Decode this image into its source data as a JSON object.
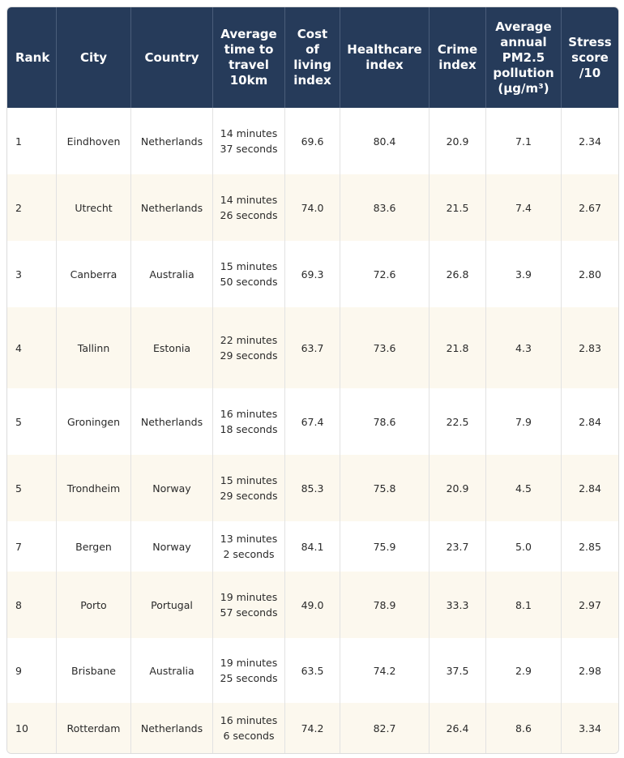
{
  "table": {
    "header": [
      "Rank",
      "City",
      "Country",
      "Average time to travel 10km",
      "Cost of living index",
      "Healthcare index",
      "Crime index",
      "Average annual PM2.5 pollution (µg/m³)",
      "Stress score /10"
    ],
    "rows": [
      [
        "1",
        "Eindhoven",
        "Netherlands",
        "14 minutes 37 seconds",
        "69.6",
        "80.4",
        "20.9",
        "7.1",
        "2.34"
      ],
      [
        "2",
        "Utrecht",
        "Netherlands",
        "14 minutes 26 seconds",
        "74.0",
        "83.6",
        "21.5",
        "7.4",
        "2.67"
      ],
      [
        "3",
        "Canberra",
        "Australia",
        "15 minutes 50 seconds",
        "69.3",
        "72.6",
        "26.8",
        "3.9",
        "2.80"
      ],
      [
        "4",
        "Tallinn",
        "Estonia",
        "22 minutes 29 seconds",
        "63.7",
        "73.6",
        "21.8",
        "4.3",
        "2.83"
      ],
      [
        "5",
        "Groningen",
        "Netherlands",
        "16 minutes 18 seconds",
        "67.4",
        "78.6",
        "22.5",
        "7.9",
        "2.84"
      ],
      [
        "5",
        "Trondheim",
        "Norway",
        "15 minutes 29 seconds",
        "85.3",
        "75.8",
        "20.9",
        "4.5",
        "2.84"
      ],
      [
        "7",
        "Bergen",
        "Norway",
        "13 minutes 2 seconds",
        "84.1",
        "75.9",
        "23.7",
        "5.0",
        "2.85"
      ],
      [
        "8",
        "Porto",
        "Portugal",
        "19 minutes 57 seconds",
        "49.0",
        "78.9",
        "33.3",
        "8.1",
        "2.97"
      ],
      [
        "9",
        "Brisbane",
        "Australia",
        "19 minutes 25 seconds",
        "63.5",
        "74.2",
        "37.5",
        "2.9",
        "2.98"
      ],
      [
        "10",
        "Rotterdam",
        "Netherlands",
        "16 minutes 6 seconds",
        "74.2",
        "82.7",
        "26.4",
        "8.6",
        "3.34"
      ]
    ]
  }
}
